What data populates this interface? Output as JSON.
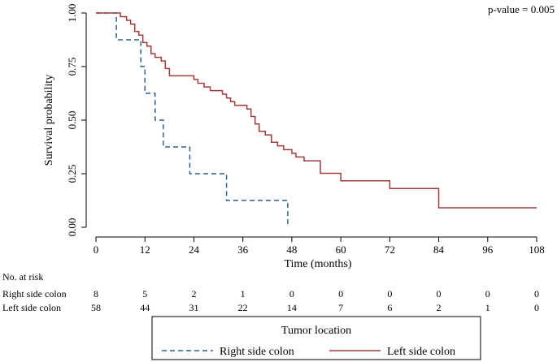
{
  "chart_data": {
    "type": "line",
    "subtype": "kaplan-meier",
    "title": "",
    "annotation": "p-value = 0.005",
    "xlabel": "Time (months)",
    "ylabel": "Survival probability",
    "xlim": [
      0,
      108
    ],
    "ylim": [
      0,
      1
    ],
    "xticks": [
      "0",
      "12",
      "24",
      "36",
      "48",
      "60",
      "72",
      "84",
      "96",
      "108"
    ],
    "yticks": [
      "0.00",
      "0.25",
      "0.50",
      "0.75",
      "1.00"
    ],
    "series": [
      {
        "name": "Right side colon",
        "color": "#2f5f96",
        "dash": "dashed",
        "steps": [
          [
            0,
            1.0
          ],
          [
            5,
            0.875
          ],
          [
            11,
            0.75
          ],
          [
            12,
            0.625
          ],
          [
            14.5,
            0.5
          ],
          [
            16.5,
            0.375
          ],
          [
            23,
            0.25
          ],
          [
            32,
            0.125
          ],
          [
            47,
            0.0
          ]
        ]
      },
      {
        "name": "Left side colon",
        "color": "#a23b3b",
        "dash": "solid",
        "steps": [
          [
            0,
            1.0
          ],
          [
            6,
            0.983
          ],
          [
            7.5,
            0.966
          ],
          [
            8.5,
            0.948
          ],
          [
            9.5,
            0.914
          ],
          [
            10.5,
            0.897
          ],
          [
            11.5,
            0.862
          ],
          [
            12.5,
            0.845
          ],
          [
            13.5,
            0.81
          ],
          [
            14.5,
            0.793
          ],
          [
            16,
            0.776
          ],
          [
            17,
            0.741
          ],
          [
            18,
            0.707
          ],
          [
            24,
            0.69
          ],
          [
            25,
            0.672
          ],
          [
            26.5,
            0.655
          ],
          [
            28,
            0.638
          ],
          [
            31,
            0.621
          ],
          [
            32,
            0.603
          ],
          [
            33,
            0.586
          ],
          [
            34,
            0.569
          ],
          [
            37,
            0.552
          ],
          [
            38,
            0.517
          ],
          [
            39,
            0.482
          ],
          [
            40,
            0.448
          ],
          [
            41.5,
            0.431
          ],
          [
            43,
            0.397
          ],
          [
            44.5,
            0.38
          ],
          [
            46,
            0.362
          ],
          [
            48,
            0.345
          ],
          [
            49,
            0.328
          ],
          [
            51,
            0.31
          ],
          [
            55,
            0.252
          ],
          [
            60,
            0.217
          ],
          [
            72,
            0.181
          ],
          [
            84,
            0.091
          ],
          [
            108,
            0.091
          ]
        ]
      }
    ],
    "risk_table": {
      "header": "No. at risk",
      "times": [
        0,
        12,
        24,
        36,
        48,
        60,
        72,
        84,
        96,
        108
      ],
      "rows": [
        {
          "label": "Right side colon",
          "values": [
            "8",
            "5",
            "2",
            "1",
            "0",
            "0",
            "0",
            "0",
            "0",
            "0"
          ]
        },
        {
          "label": "Left side colon",
          "values": [
            "58",
            "44",
            "31",
            "22",
            "14",
            "7",
            "6",
            "2",
            "1",
            "0"
          ]
        }
      ]
    },
    "legend": {
      "title": "Tumor location",
      "position": "bottom",
      "entries": [
        "Right side colon",
        "Left side colon"
      ]
    }
  }
}
